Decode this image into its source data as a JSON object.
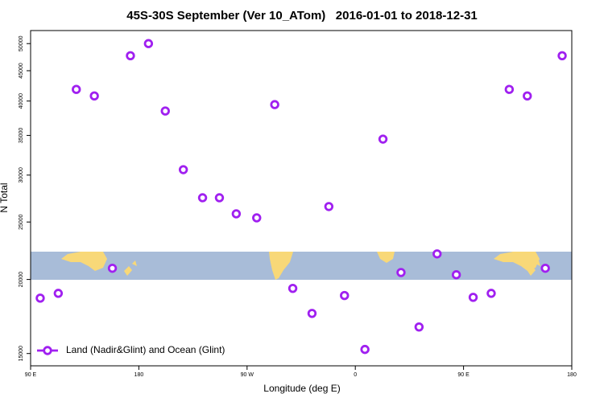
{
  "chart_data": {
    "type": "scatter",
    "title": "45S-30S September (Ver 10_ATom)   2016-01-01 to 2018-12-31",
    "xlabel": "Longitude (deg E)",
    "ylabel": "N Total",
    "series": [
      {
        "name": "Land (Nadir&Glint) and Ocean (Glint)",
        "color": "#a020f0",
        "x": [
          98,
          113,
          128,
          143,
          158,
          173,
          188,
          202,
          217,
          233,
          247,
          261,
          278,
          293,
          308,
          324,
          338,
          351,
          368,
          383,
          398,
          413,
          428,
          444,
          458,
          473,
          488,
          503,
          518,
          532
        ],
        "values": [
          18600,
          18950,
          41850,
          40800,
          20890,
          47700,
          50000,
          38480,
          30640,
          27470,
          27470,
          25810,
          25410,
          39450,
          19320,
          17530,
          26550,
          18790,
          15240,
          34500,
          20550,
          16630,
          22090,
          20370,
          18660,
          18950,
          41850,
          40800,
          20890,
          47700
        ]
      }
    ],
    "xlim": [
      90,
      540
    ],
    "xticks": [
      {
        "value": 90,
        "label": "90 E"
      },
      {
        "value": 180,
        "label": "180"
      },
      {
        "value": 270,
        "label": "90 W"
      },
      {
        "value": 360,
        "label": "0"
      },
      {
        "value": 450,
        "label": "90 E"
      },
      {
        "value": 540,
        "label": "180"
      }
    ],
    "ylim": [
      14300,
      52600
    ],
    "ylog": true,
    "yticks": [
      15000,
      20000,
      25000,
      30000,
      35000,
      40000,
      45000,
      50000
    ],
    "legend": "bottom-left"
  }
}
